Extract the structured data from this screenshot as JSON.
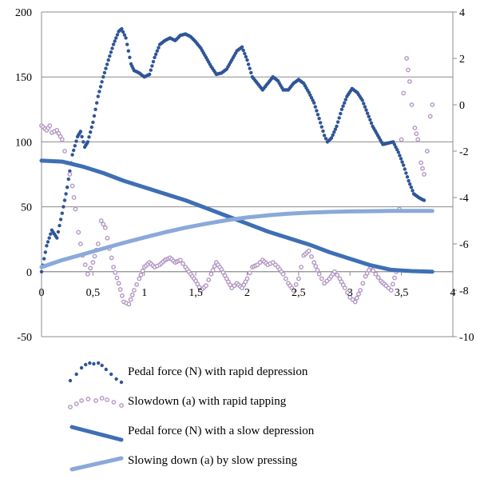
{
  "chart_data": {
    "type": "line",
    "title": "",
    "xlabel": "",
    "ylabel": "",
    "xlim": [
      0,
      4
    ],
    "ylim_left": [
      -50,
      200
    ],
    "ylim_right": [
      -10,
      4
    ],
    "x_ticks": [
      0,
      0.5,
      1,
      1.5,
      2,
      2.5,
      3,
      3.5,
      4
    ],
    "x_tick_labels": [
      "0",
      "0,5",
      "1",
      "1,5",
      "2",
      "2,5",
      "3",
      "3,5",
      "4"
    ],
    "y_left_ticks": [
      -50,
      0,
      50,
      100,
      150,
      200
    ],
    "y_left_tick_labels": [
      "-50",
      "0",
      "50",
      "100",
      "150",
      "200"
    ],
    "y_right_ticks": [
      -10,
      -8,
      -6,
      -4,
      -2,
      0,
      2,
      4
    ],
    "y_right_tick_labels": [
      "-10",
      "-8",
      "-6",
      "-4",
      "-2",
      "0",
      "2",
      "4"
    ],
    "grid": "horizontal",
    "legend_position": "bottom",
    "series": [
      {
        "name": "Pedal force (N) with rapid depression",
        "axis": "left",
        "style": "dots",
        "color": "#2f5597",
        "points": [
          [
            0,
            0
          ],
          [
            0.05,
            20
          ],
          [
            0.1,
            32
          ],
          [
            0.15,
            26
          ],
          [
            0.2,
            45
          ],
          [
            0.25,
            65
          ],
          [
            0.3,
            90
          ],
          [
            0.35,
            104
          ],
          [
            0.38,
            108
          ],
          [
            0.42,
            96
          ],
          [
            0.45,
            100
          ],
          [
            0.5,
            115
          ],
          [
            0.55,
            135
          ],
          [
            0.6,
            150
          ],
          [
            0.65,
            163
          ],
          [
            0.7,
            175
          ],
          [
            0.75,
            185
          ],
          [
            0.78,
            187
          ],
          [
            0.82,
            180
          ],
          [
            0.87,
            160
          ],
          [
            0.9,
            155
          ],
          [
            0.95,
            153
          ],
          [
            1.0,
            150
          ],
          [
            1.05,
            152
          ],
          [
            1.1,
            165
          ],
          [
            1.15,
            175
          ],
          [
            1.2,
            178
          ],
          [
            1.25,
            180
          ],
          [
            1.3,
            178
          ],
          [
            1.35,
            182
          ],
          [
            1.4,
            183
          ],
          [
            1.45,
            181
          ],
          [
            1.5,
            177
          ],
          [
            1.55,
            172
          ],
          [
            1.6,
            165
          ],
          [
            1.65,
            158
          ],
          [
            1.7,
            152
          ],
          [
            1.75,
            153
          ],
          [
            1.8,
            156
          ],
          [
            1.85,
            163
          ],
          [
            1.9,
            170
          ],
          [
            1.95,
            173
          ],
          [
            2.0,
            163
          ],
          [
            2.05,
            150
          ],
          [
            2.1,
            145
          ],
          [
            2.15,
            140
          ],
          [
            2.2,
            145
          ],
          [
            2.25,
            150
          ],
          [
            2.3,
            147
          ],
          [
            2.35,
            140
          ],
          [
            2.4,
            140
          ],
          [
            2.45,
            145
          ],
          [
            2.5,
            148
          ],
          [
            2.55,
            145
          ],
          [
            2.6,
            138
          ],
          [
            2.65,
            130
          ],
          [
            2.7,
            118
          ],
          [
            2.75,
            105
          ],
          [
            2.78,
            100
          ],
          [
            2.82,
            103
          ],
          [
            2.87,
            112
          ],
          [
            2.92,
            125
          ],
          [
            2.97,
            135
          ],
          [
            3.02,
            141
          ],
          [
            3.07,
            138
          ],
          [
            3.12,
            132
          ],
          [
            3.17,
            122
          ],
          [
            3.22,
            112
          ],
          [
            3.27,
            105
          ],
          [
            3.32,
            98
          ],
          [
            3.37,
            99
          ],
          [
            3.42,
            100
          ],
          [
            3.47,
            92
          ],
          [
            3.52,
            82
          ],
          [
            3.57,
            70
          ],
          [
            3.62,
            60
          ],
          [
            3.67,
            57
          ],
          [
            3.72,
            55
          ]
        ]
      },
      {
        "name": "Slowdown (a) with rapid tapping",
        "axis": "right",
        "style": "hollow-dots",
        "color": "#b397c3",
        "points": [
          [
            0,
            -0.9
          ],
          [
            0.05,
            -1.1
          ],
          [
            0.08,
            -0.9
          ],
          [
            0.1,
            -1.2
          ],
          [
            0.15,
            -1.1
          ],
          [
            0.2,
            -1.5
          ],
          [
            0.25,
            -2.5
          ],
          [
            0.3,
            -3.5
          ],
          [
            0.33,
            -4.5
          ],
          [
            0.36,
            -5.5
          ],
          [
            0.4,
            -6.5
          ],
          [
            0.45,
            -7.3
          ],
          [
            0.5,
            -6.8
          ],
          [
            0.55,
            -6.0
          ],
          [
            0.58,
            -5.0
          ],
          [
            0.62,
            -5.3
          ],
          [
            0.66,
            -6.2
          ],
          [
            0.7,
            -7.0
          ],
          [
            0.75,
            -7.7
          ],
          [
            0.8,
            -8.5
          ],
          [
            0.85,
            -8.6
          ],
          [
            0.9,
            -8.0
          ],
          [
            0.95,
            -7.5
          ],
          [
            1.0,
            -7.0
          ],
          [
            1.05,
            -6.8
          ],
          [
            1.1,
            -7.0
          ],
          [
            1.15,
            -6.9
          ],
          [
            1.2,
            -6.7
          ],
          [
            1.25,
            -6.6
          ],
          [
            1.3,
            -6.8
          ],
          [
            1.35,
            -6.7
          ],
          [
            1.4,
            -7.0
          ],
          [
            1.45,
            -7.3
          ],
          [
            1.5,
            -7.6
          ],
          [
            1.55,
            -8.0
          ],
          [
            1.6,
            -7.8
          ],
          [
            1.65,
            -7.3
          ],
          [
            1.7,
            -6.8
          ],
          [
            1.75,
            -7.1
          ],
          [
            1.8,
            -7.5
          ],
          [
            1.85,
            -7.9
          ],
          [
            1.9,
            -7.7
          ],
          [
            1.95,
            -7.9
          ],
          [
            2.0,
            -7.5
          ],
          [
            2.05,
            -7.0
          ],
          [
            2.1,
            -6.9
          ],
          [
            2.15,
            -6.7
          ],
          [
            2.2,
            -6.9
          ],
          [
            2.25,
            -6.8
          ],
          [
            2.3,
            -7.0
          ],
          [
            2.35,
            -7.3
          ],
          [
            2.4,
            -7.7
          ],
          [
            2.45,
            -8.0
          ],
          [
            2.5,
            -7.5
          ],
          [
            2.55,
            -6.5
          ],
          [
            2.6,
            -6.3
          ],
          [
            2.65,
            -6.8
          ],
          [
            2.7,
            -7.3
          ],
          [
            2.75,
            -7.7
          ],
          [
            2.8,
            -7.5
          ],
          [
            2.85,
            -7.2
          ],
          [
            2.9,
            -7.5
          ],
          [
            2.95,
            -7.9
          ],
          [
            3.0,
            -8.3
          ],
          [
            3.05,
            -8.5
          ],
          [
            3.1,
            -8.0
          ],
          [
            3.15,
            -7.4
          ],
          [
            3.2,
            -7.0
          ],
          [
            3.25,
            -7.3
          ],
          [
            3.3,
            -7.6
          ],
          [
            3.35,
            -7.8
          ],
          [
            3.4,
            -8.0
          ],
          [
            3.45,
            -7.2
          ],
          [
            3.48,
            -4.5
          ],
          [
            3.5,
            -1.5
          ],
          [
            3.52,
            0.5
          ],
          [
            3.55,
            2.0
          ],
          [
            3.58,
            1.0
          ],
          [
            3.6,
            0
          ],
          [
            3.63,
            -1.0
          ],
          [
            3.66,
            -1.5
          ],
          [
            3.69,
            -2.5
          ],
          [
            3.72,
            -3.0
          ],
          [
            3.75,
            -2.0
          ],
          [
            3.78,
            -0.5
          ],
          [
            3.8,
            0
          ]
        ]
      },
      {
        "name": "Pedal force (N) with a slow depression",
        "axis": "left",
        "style": "thick-line",
        "color": "#3e6fb5",
        "points": [
          [
            0,
            85.5
          ],
          [
            0.2,
            84.8
          ],
          [
            0.4,
            81
          ],
          [
            0.6,
            76
          ],
          [
            0.8,
            70
          ],
          [
            1.0,
            65
          ],
          [
            1.2,
            60
          ],
          [
            1.4,
            55
          ],
          [
            1.6,
            49
          ],
          [
            1.8,
            43
          ],
          [
            2.0,
            37
          ],
          [
            2.2,
            31
          ],
          [
            2.4,
            26
          ],
          [
            2.6,
            21
          ],
          [
            2.8,
            15
          ],
          [
            3.0,
            10
          ],
          [
            3.2,
            5
          ],
          [
            3.4,
            1.5
          ],
          [
            3.6,
            0.5
          ],
          [
            3.8,
            0
          ]
        ]
      },
      {
        "name": "Slowing down (a) by slow pressing",
        "axis": "right",
        "style": "thick-line",
        "color": "#8aa9d8",
        "points": [
          [
            0,
            -7.0
          ],
          [
            0.2,
            -6.7
          ],
          [
            0.4,
            -6.45
          ],
          [
            0.6,
            -6.2
          ],
          [
            0.8,
            -5.95
          ],
          [
            1.0,
            -5.72
          ],
          [
            1.2,
            -5.5
          ],
          [
            1.4,
            -5.3
          ],
          [
            1.6,
            -5.13
          ],
          [
            1.8,
            -4.98
          ],
          [
            2.0,
            -4.86
          ],
          [
            2.2,
            -4.77
          ],
          [
            2.4,
            -4.7
          ],
          [
            2.6,
            -4.65
          ],
          [
            2.8,
            -4.62
          ],
          [
            3.0,
            -4.6
          ],
          [
            3.2,
            -4.59
          ],
          [
            3.4,
            -4.58
          ],
          [
            3.6,
            -4.58
          ],
          [
            3.8,
            -4.58
          ]
        ]
      }
    ]
  }
}
